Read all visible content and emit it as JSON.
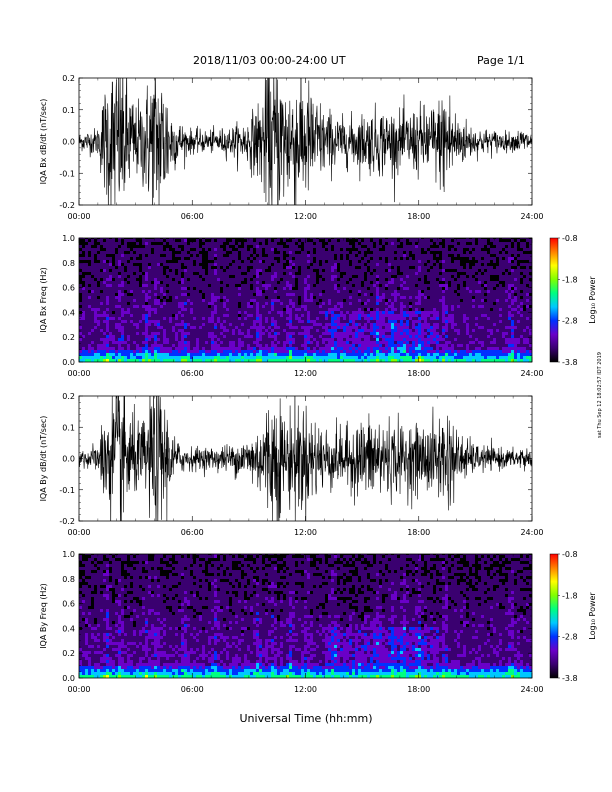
{
  "header": {
    "date_range": "2018/11/03   00:00-24:00 UT",
    "page": "Page 1/1"
  },
  "side_note": "sat Thu Sep 12 18:02:57 IDT 2019",
  "x_axis_label": "Universal Time (hh:mm)",
  "colorbar": {
    "label": "Log₁₀ Power",
    "tick_labels": [
      "-0.8",
      "-1.8",
      "-2.8",
      "-3.8"
    ],
    "colors": [
      "#000000",
      "#3a0070",
      "#6a00c8",
      "#0030ff",
      "#00c8ff",
      "#00ff80",
      "#80ff00",
      "#ffff00",
      "#ff8000",
      "#ff0000"
    ]
  },
  "chart_data": [
    {
      "type": "line",
      "ylabel": "IQA Bx dB/dt (nT/sec)",
      "xlabel": "",
      "x_tick_labels": [
        "00:00",
        "06:00",
        "12:00",
        "18:00",
        "24:00"
      ],
      "xlim": [
        0,
        24
      ],
      "ylim": [
        -0.2,
        0.2
      ],
      "y_tick_labels": [
        "0.2",
        "0.1",
        "0.0",
        "-0.1",
        "-0.2"
      ],
      "envelope": {
        "x_hours": [
          0,
          1,
          1.5,
          2,
          2.5,
          3,
          3.5,
          4,
          4.5,
          5,
          5.5,
          6,
          7,
          8,
          9,
          9.5,
          10,
          10.5,
          11,
          11.5,
          12,
          13,
          14,
          15,
          16,
          17,
          18,
          19,
          19.5,
          20,
          21,
          22,
          23,
          23.5,
          24
        ],
        "amplitude": [
          0.03,
          0.05,
          0.25,
          0.3,
          0.25,
          0.12,
          0.18,
          0.3,
          0.25,
          0.1,
          0.06,
          0.04,
          0.04,
          0.05,
          0.08,
          0.14,
          0.25,
          0.3,
          0.22,
          0.26,
          0.22,
          0.12,
          0.08,
          0.1,
          0.12,
          0.1,
          0.12,
          0.14,
          0.22,
          0.1,
          0.05,
          0.04,
          0.03,
          0.05,
          0.03
        ]
      }
    },
    {
      "type": "heatmap",
      "ylabel": "IQA Bx Freq (Hz)",
      "xlabel": "",
      "x_tick_labels": [
        "00:00",
        "06:00",
        "12:00",
        "18:00",
        "24:00"
      ],
      "xlim": [
        0,
        24
      ],
      "ylim": [
        0,
        1.0
      ],
      "y_tick_labels": [
        "1.0",
        "0.8",
        "0.6",
        "0.4",
        "0.2",
        "0.0"
      ],
      "zlim": [
        -3.8,
        -0.8
      ]
    },
    {
      "type": "line",
      "ylabel": "IQA By dB/dt (nT/sec)",
      "xlabel": "",
      "x_tick_labels": [
        "00:00",
        "06:00",
        "12:00",
        "18:00",
        "24:00"
      ],
      "xlim": [
        0,
        24
      ],
      "ylim": [
        -0.2,
        0.2
      ],
      "y_tick_labels": [
        "0.2",
        "0.1",
        "0.0",
        "-0.1",
        "-0.2"
      ],
      "envelope": {
        "x_hours": [
          0,
          1,
          1.5,
          2,
          2.5,
          3,
          3.5,
          4,
          4.5,
          5,
          5.5,
          6,
          7,
          8,
          9,
          9.5,
          10,
          10.5,
          11,
          11.5,
          12,
          13,
          14,
          15,
          16,
          17,
          18,
          19,
          19.5,
          20,
          21,
          22,
          23,
          23.5,
          24
        ],
        "amplitude": [
          0.03,
          0.05,
          0.2,
          0.28,
          0.25,
          0.12,
          0.15,
          0.3,
          0.22,
          0.08,
          0.05,
          0.04,
          0.04,
          0.05,
          0.08,
          0.12,
          0.2,
          0.25,
          0.15,
          0.22,
          0.18,
          0.12,
          0.1,
          0.14,
          0.16,
          0.12,
          0.12,
          0.14,
          0.2,
          0.1,
          0.05,
          0.04,
          0.03,
          0.05,
          0.03
        ]
      }
    },
    {
      "type": "heatmap",
      "ylabel": "IQA By Freq (Hz)",
      "xlabel": "",
      "x_tick_labels": [
        "00:00",
        "06:00",
        "12:00",
        "18:00",
        "24:00"
      ],
      "xlim": [
        0,
        24
      ],
      "ylim": [
        0,
        1.0
      ],
      "y_tick_labels": [
        "1.0",
        "0.8",
        "0.6",
        "0.4",
        "0.2",
        "0.0"
      ],
      "zlim": [
        -3.8,
        -0.8
      ]
    }
  ]
}
